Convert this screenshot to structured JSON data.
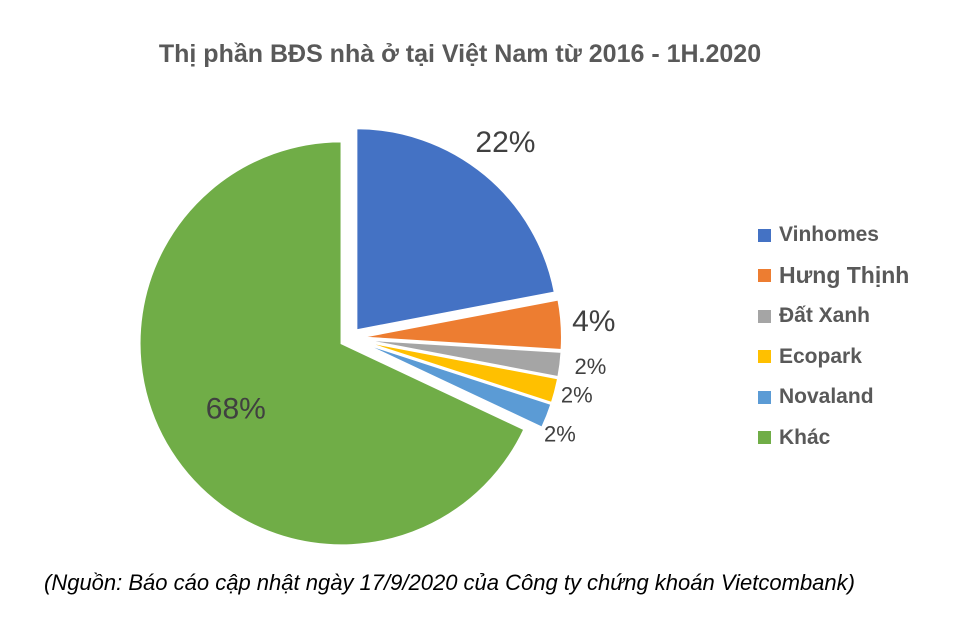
{
  "chart_data": {
    "type": "pie",
    "title": "Thị phần BĐS nhà ở tại Việt Nam từ 2016 - 1H.2020",
    "categories": [
      "Vinhomes",
      "Hưng Thịnh",
      "Đất Xanh",
      "Ecopark",
      "Novaland",
      "Khác"
    ],
    "values": [
      22,
      4,
      2,
      2,
      2,
      68
    ],
    "labels": [
      "22%",
      "4%",
      "2%",
      "2%",
      "2%",
      "68%"
    ],
    "unit": "%",
    "colors": [
      "#4472C4",
      "#ED7D31",
      "#A5A5A5",
      "#FFC000",
      "#5B9BD5",
      "#70AD47"
    ],
    "legend_position": "right",
    "exploded": true
  },
  "source_note": "(Nguồn: Báo cáo cập nhật ngày 17/9/2020 của Công ty chứng khoán Vietcombank)"
}
